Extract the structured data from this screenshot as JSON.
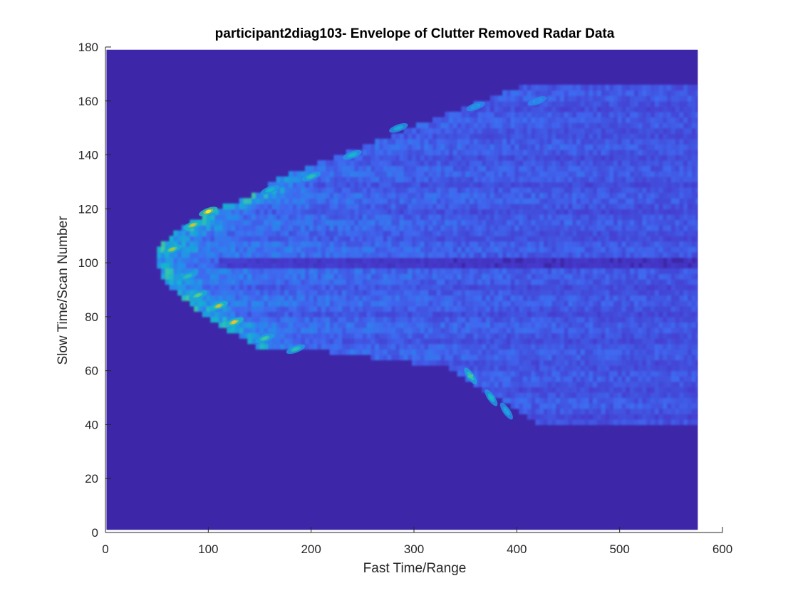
{
  "chart_data": {
    "type": "heatmap",
    "title": "participant2diag103- Envelope of Clutter Removed Radar Data",
    "xlabel": "Fast Time/Range",
    "ylabel": "Slow Time/Scan Number",
    "xlim": [
      0,
      600
    ],
    "ylim": [
      0,
      180
    ],
    "xticks": [
      0,
      100,
      200,
      300,
      400,
      500,
      600
    ],
    "yticks": [
      0,
      20,
      40,
      60,
      80,
      100,
      120,
      140,
      160,
      180
    ],
    "data_extent": {
      "x": [
        1,
        576
      ],
      "y": [
        1,
        179
      ]
    },
    "colormap": "parula",
    "colors": {
      "background": "#3e26a8",
      "low": "#3c35b4",
      "mid": "#2c8ef0",
      "high": "#f9d326"
    },
    "intensity_peaks": [
      {
        "x": 100,
        "y": 119,
        "value": 1.0
      },
      {
        "x": 85,
        "y": 114,
        "value": 0.85
      },
      {
        "x": 65,
        "y": 105,
        "value": 0.8
      },
      {
        "x": 110,
        "y": 84,
        "value": 0.85
      },
      {
        "x": 125,
        "y": 78,
        "value": 0.9
      },
      {
        "x": 90,
        "y": 88,
        "value": 0.7
      },
      {
        "x": 80,
        "y": 95,
        "value": 0.6
      },
      {
        "x": 155,
        "y": 72,
        "value": 0.65
      },
      {
        "x": 185,
        "y": 68,
        "value": 0.6
      },
      {
        "x": 160,
        "y": 127,
        "value": 0.55
      },
      {
        "x": 200,
        "y": 132,
        "value": 0.6
      },
      {
        "x": 240,
        "y": 140,
        "value": 0.55
      },
      {
        "x": 285,
        "y": 150,
        "value": 0.5
      },
      {
        "x": 355,
        "y": 58,
        "value": 0.65
      },
      {
        "x": 375,
        "y": 50,
        "value": 0.55
      },
      {
        "x": 390,
        "y": 45,
        "value": 0.45
      },
      {
        "x": 360,
        "y": 158,
        "value": 0.4
      },
      {
        "x": 420,
        "y": 160,
        "value": 0.35
      }
    ]
  }
}
